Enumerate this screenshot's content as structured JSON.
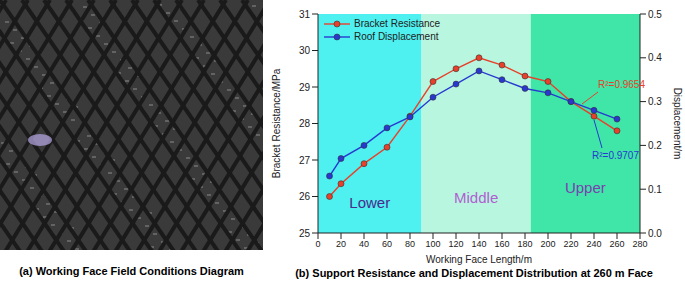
{
  "photo": {
    "caption": "(a) Working Face Field Conditions Diagram"
  },
  "chart_data": {
    "type": "line",
    "title": "(b) Support Resistance and Displacement Distribution at 260 m Face",
    "x_label": "Working Face Length/m",
    "y_label": "Bracket Resistance/MPa",
    "y2_label": "Displacement/m",
    "x": [
      10,
      20,
      40,
      60,
      80,
      100,
      120,
      140,
      160,
      180,
      200,
      220,
      240,
      260
    ],
    "series": [
      {
        "name": "Bracket Resistance",
        "color": "#e8402a",
        "marker": "circle",
        "values": [
          26.0,
          26.35,
          26.9,
          27.35,
          28.2,
          29.15,
          29.5,
          29.8,
          29.6,
          29.3,
          29.15,
          28.6,
          28.2,
          27.8
        ]
      },
      {
        "name": "Roof Displacement",
        "color": "#2838d0",
        "marker": "circle",
        "axis": "y2",
        "values": [
          0.13,
          0.17,
          0.2,
          0.24,
          0.265,
          0.31,
          0.34,
          0.37,
          0.35,
          0.33,
          0.32,
          0.3,
          0.28,
          0.26
        ]
      }
    ],
    "xlim": [
      0,
      280
    ],
    "xticks": [
      0,
      20,
      40,
      60,
      80,
      100,
      120,
      140,
      160,
      180,
      200,
      220,
      240,
      260,
      280
    ],
    "ylim": [
      25,
      31
    ],
    "yticks": [
      25,
      26,
      27,
      28,
      29,
      30,
      31
    ],
    "y2lim": [
      0,
      0.5
    ],
    "y2ticks": [
      {
        "value": 0,
        "label": "0.0"
      },
      {
        "value": 0.1,
        "label": "0.1"
      },
      {
        "value": 0.2,
        "label": "0.2"
      },
      {
        "value": 0.3,
        "label": "0.3"
      },
      {
        "value": 0.4,
        "label": "0.4"
      },
      {
        "value": 0.5,
        "label": "0.5"
      }
    ],
    "legend": "upper left",
    "regions": [
      {
        "label": "Lower",
        "x": [
          0,
          90
        ],
        "color": "#4ff0f0",
        "label_color": "#4a2a8c"
      },
      {
        "label": "Middle",
        "x": [
          90,
          185
        ],
        "color": "#b8f6e0",
        "label_color": "#b060d0"
      },
      {
        "label": "Upper",
        "x": [
          185,
          280
        ],
        "color": "#3fe6a8",
        "label_color": "#7a3fb0"
      }
    ],
    "annotations": [
      {
        "text": "R²=0.9654",
        "color": "#e8402a"
      },
      {
        "text": "R²=0.9707",
        "color": "#2838d0"
      }
    ]
  }
}
